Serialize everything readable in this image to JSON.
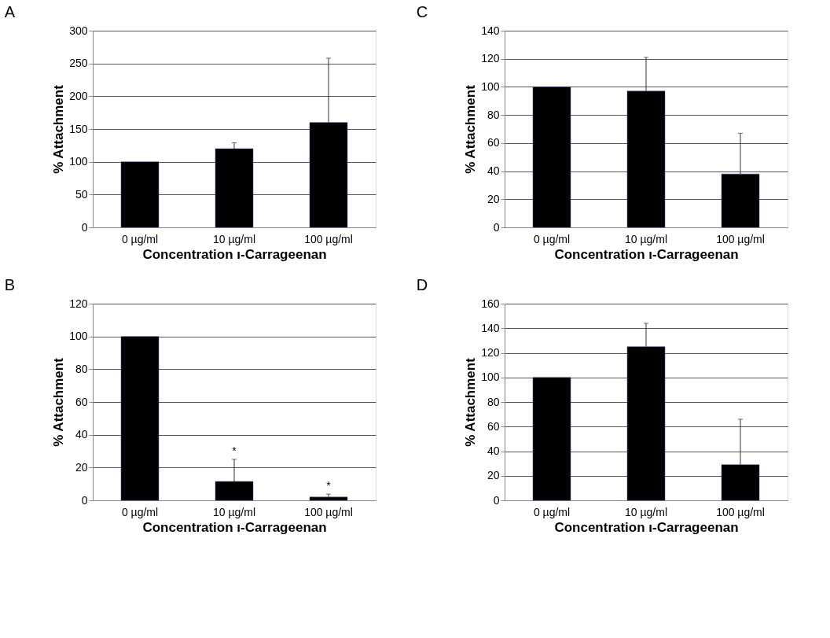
{
  "chart_data": [
    {
      "type": "bar",
      "title": "A",
      "xlabel": "Concentration ı-Carrageenan",
      "ylabel": "% Attachment",
      "categories": [
        "0 µg/ml",
        "10 µg/ml",
        "100 µg/ml"
      ],
      "values": [
        100,
        120,
        160
      ],
      "errors": [
        null,
        [
          120,
          129
        ],
        [
          160,
          258
        ]
      ],
      "color": "#000000",
      "ylim": [
        0,
        300
      ],
      "yticks": [
        0,
        50,
        100,
        150,
        200,
        250,
        300
      ],
      "grid": "y"
    },
    {
      "type": "bar",
      "title": "C",
      "xlabel": "Concentration ı-Carrageenan",
      "ylabel": "% Attachment",
      "categories": [
        "0 µg/ml",
        "10 µg/ml",
        "100 µg/ml"
      ],
      "values": [
        100,
        97,
        38
      ],
      "errors": [
        null,
        [
          97,
          121
        ],
        [
          38,
          67
        ]
      ],
      "color": "#000000",
      "ylim": [
        0,
        140
      ],
      "yticks": [
        0,
        20,
        40,
        60,
        80,
        100,
        120,
        140
      ],
      "grid": "y"
    },
    {
      "type": "bar",
      "title": "B",
      "xlabel": "Concentration ı-Carrageenan",
      "ylabel": "% Attachment",
      "categories": [
        "0 µg/ml",
        "10 µg/ml",
        "100 µg/ml"
      ],
      "values": [
        100,
        11.5,
        2
      ],
      "errors": [
        null,
        [
          11.5,
          25
        ],
        [
          2,
          3.8
        ]
      ],
      "color": "#000000",
      "ylim": [
        0,
        120
      ],
      "yticks": [
        0,
        20,
        40,
        60,
        80,
        100,
        120
      ],
      "grid": "y",
      "annotations": [
        {
          "text": "*",
          "x": "10 µg/ml",
          "y": 25
        },
        {
          "text": "*",
          "x": "100 µg/ml",
          "y": 3.8
        }
      ]
    },
    {
      "type": "bar",
      "title": "D",
      "xlabel": "Concentration ı-Carrageenan",
      "ylabel": "% Attachment",
      "categories": [
        "0 µg/ml",
        "10 µg/ml",
        "100 µg/ml"
      ],
      "values": [
        100,
        125,
        29
      ],
      "errors": [
        null,
        [
          125,
          144
        ],
        [
          29,
          66
        ]
      ],
      "color": "#000000",
      "ylim": [
        0,
        160
      ],
      "yticks": [
        0,
        20,
        40,
        60,
        80,
        100,
        120,
        140,
        160
      ],
      "grid": "y"
    }
  ]
}
